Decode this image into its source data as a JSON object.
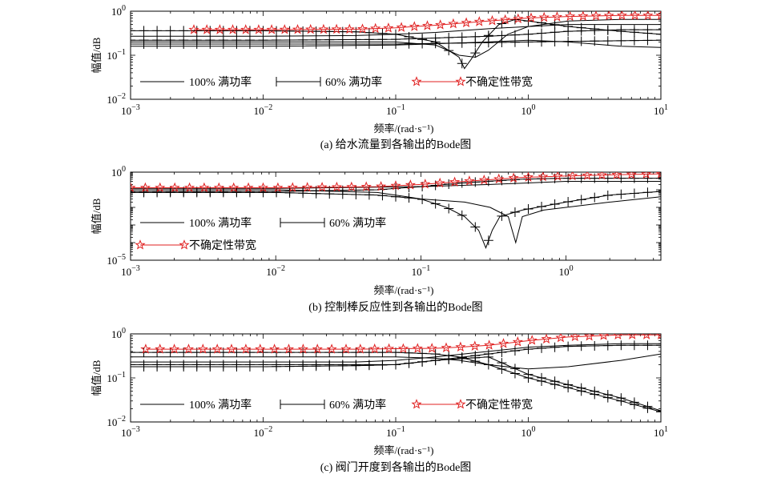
{
  "chart_data": [
    {
      "type": "line",
      "caption": "(a) 给水流量到各输出的Bode图",
      "xlabel": "频率/(rad·s⁻¹)",
      "ylabel": "幅值/dB",
      "xscale": "log",
      "yscale": "log",
      "xlim": [
        0.001,
        10
      ],
      "ylim": [
        0.01,
        1
      ],
      "x_ticks": [
        {
          "m": "10",
          "e": "−3"
        },
        {
          "m": "10",
          "e": "−2"
        },
        {
          "m": "10",
          "e": "−1"
        },
        {
          "m": "10",
          "e": "0"
        },
        {
          "m": "10",
          "e": "1"
        }
      ],
      "y_ticks": [
        {
          "m": "10",
          "e": "0"
        },
        {
          "m": "10",
          "e": "−1"
        },
        {
          "m": "10",
          "e": "−2"
        }
      ],
      "legend": {
        "placement": "bottom-left",
        "layout": "row",
        "items": [
          "100% 满功率",
          "60% 满功率",
          "不确定性带宽"
        ]
      },
      "series": [
        {
          "style": "plain",
          "x": [
            0.001,
            0.01,
            0.05,
            0.1,
            0.2,
            0.5,
            1,
            2,
            5,
            10
          ],
          "y": [
            0.27,
            0.27,
            0.28,
            0.3,
            0.33,
            0.4,
            0.45,
            0.5,
            0.5,
            0.5
          ]
        },
        {
          "style": "plain",
          "x": [
            0.001,
            0.01,
            0.05,
            0.1,
            0.2,
            0.3,
            0.4,
            0.5,
            0.7,
            1,
            2,
            5,
            10
          ],
          "y": [
            0.2,
            0.2,
            0.2,
            0.2,
            0.17,
            0.1,
            0.09,
            0.13,
            0.3,
            0.45,
            0.6,
            0.65,
            0.65
          ]
        },
        {
          "style": "plain",
          "x": [
            0.001,
            0.01,
            0.1,
            0.5,
            1,
            2,
            5,
            10
          ],
          "y": [
            0.16,
            0.16,
            0.17,
            0.2,
            0.22,
            0.2,
            0.16,
            0.15
          ]
        },
        {
          "style": "plus",
          "x": [
            0.001,
            0.01,
            0.05,
            0.1,
            0.2,
            0.3,
            0.33,
            0.37,
            0.45,
            0.6,
            0.8,
            1,
            2,
            5,
            10
          ],
          "y": [
            0.36,
            0.36,
            0.34,
            0.3,
            0.2,
            0.09,
            0.05,
            0.08,
            0.2,
            0.5,
            0.65,
            0.6,
            0.45,
            0.35,
            0.3
          ]
        },
        {
          "style": "plus",
          "x": [
            0.001,
            0.01,
            0.1,
            0.5,
            1,
            2,
            5,
            10
          ],
          "y": [
            0.22,
            0.22,
            0.23,
            0.27,
            0.3,
            0.35,
            0.38,
            0.38
          ]
        },
        {
          "style": "plus",
          "x": [
            0.001,
            0.01,
            0.1,
            1,
            10
          ],
          "y": [
            0.18,
            0.18,
            0.18,
            0.2,
            0.22
          ]
        },
        {
          "style": "band",
          "x": [
            0.003,
            0.01,
            0.05,
            0.1,
            0.2,
            0.5,
            1,
            2,
            5,
            10
          ],
          "y": [
            0.38,
            0.38,
            0.39,
            0.42,
            0.48,
            0.6,
            0.7,
            0.76,
            0.8,
            0.8
          ]
        }
      ]
    },
    {
      "type": "line",
      "caption": "(b) 控制棒反应性到各输出的Bode图",
      "xlabel": "频率/(rad·s⁻¹)",
      "ylabel": "幅值/dB",
      "xscale": "log",
      "yscale": "log",
      "xlim": [
        0.001,
        4.5
      ],
      "ylim": [
        1e-05,
        1
      ],
      "x_ticks": [
        {
          "v": 0.001,
          "m": "10",
          "e": "−3"
        },
        {
          "v": 0.01,
          "m": "10",
          "e": "−2"
        },
        {
          "v": 0.1,
          "m": "10",
          "e": "−1"
        },
        {
          "v": 1,
          "m": "10",
          "e": "0"
        }
      ],
      "y_ticks": [
        {
          "v": 1,
          "m": "10",
          "e": "0"
        },
        {
          "v": 1e-05,
          "m": "10",
          "e": "−5"
        }
      ],
      "legend": {
        "placement": "bottom-left",
        "layout": "stack",
        "items": [
          "100% 满功率",
          "60% 满功率",
          "不确定性带宽"
        ]
      },
      "series": [
        {
          "style": "plain",
          "x": [
            0.001,
            0.01,
            0.05,
            0.08,
            0.1,
            0.2,
            0.3,
            0.4,
            0.45,
            0.5,
            0.7,
            1,
            2,
            4.5
          ],
          "y": [
            0.1,
            0.1,
            0.07,
            0.04,
            0.03,
            0.02,
            0.01,
            0.003,
            0.0001,
            0.003,
            0.007,
            0.01,
            0.02,
            0.04
          ]
        },
        {
          "style": "plain",
          "x": [
            0.001,
            0.01,
            0.1,
            0.3,
            1,
            4.5
          ],
          "y": [
            0.12,
            0.12,
            0.15,
            0.2,
            0.3,
            0.3
          ]
        },
        {
          "style": "plus",
          "x": [
            0.001,
            0.01,
            0.05,
            0.1,
            0.15,
            0.2,
            0.25,
            0.28,
            0.31,
            0.35,
            0.5,
            1,
            2,
            4.5
          ],
          "y": [
            0.07,
            0.07,
            0.05,
            0.03,
            0.01,
            0.003,
            0.0005,
            5e-05,
            0.0005,
            0.003,
            0.007,
            0.02,
            0.05,
            0.08
          ]
        },
        {
          "style": "plus",
          "x": [
            0.001,
            0.01,
            0.05,
            0.1,
            0.2,
            0.5,
            1,
            2,
            4.5
          ],
          "y": [
            0.08,
            0.08,
            0.1,
            0.15,
            0.25,
            0.4,
            0.45,
            0.45,
            0.45
          ]
        },
        {
          "style": "band",
          "x": [
            0.001,
            0.01,
            0.05,
            0.1,
            0.2,
            0.5,
            1,
            2,
            4.5
          ],
          "y": [
            0.13,
            0.13,
            0.15,
            0.2,
            0.3,
            0.5,
            0.6,
            0.7,
            0.8
          ]
        }
      ]
    },
    {
      "type": "line",
      "caption": "(c) 阀门开度到各输出的Bode图",
      "xlabel": "频率/(rad·s⁻¹)",
      "ylabel": "幅值/dB",
      "xscale": "log",
      "yscale": "log",
      "xlim": [
        0.001,
        10
      ],
      "ylim": [
        0.01,
        1
      ],
      "x_ticks": [
        {
          "m": "10",
          "e": "−3"
        },
        {
          "m": "10",
          "e": "−2"
        },
        {
          "m": "10",
          "e": "−1"
        },
        {
          "m": "10",
          "e": "0"
        },
        {
          "m": "10",
          "e": "1"
        }
      ],
      "y_ticks": [
        {
          "m": "10",
          "e": "0"
        },
        {
          "m": "10",
          "e": "−1"
        },
        {
          "m": "10",
          "e": "−2"
        }
      ],
      "legend": {
        "placement": "bottom-left",
        "layout": "row",
        "items": [
          "100% 满功率",
          "60% 满功率",
          "不确定性带宽"
        ]
      },
      "series": [
        {
          "style": "plain",
          "x": [
            0.001,
            0.05,
            0.1,
            0.2,
            0.5,
            1,
            2,
            5,
            10
          ],
          "y": [
            0.23,
            0.23,
            0.25,
            0.3,
            0.4,
            0.5,
            0.55,
            0.6,
            0.6
          ]
        },
        {
          "style": "plain",
          "x": [
            0.001,
            0.05,
            0.1,
            0.2,
            0.3,
            0.5,
            0.8,
            1,
            2,
            5,
            10
          ],
          "y": [
            0.3,
            0.3,
            0.3,
            0.28,
            0.25,
            0.2,
            0.17,
            0.16,
            0.18,
            0.25,
            0.35
          ]
        },
        {
          "style": "plus",
          "x": [
            0.001,
            0.01,
            0.05,
            0.1,
            0.2,
            0.3,
            0.5,
            1,
            2,
            5,
            10
          ],
          "y": [
            0.38,
            0.38,
            0.38,
            0.38,
            0.35,
            0.3,
            0.2,
            0.1,
            0.06,
            0.03,
            0.017
          ]
        },
        {
          "style": "plus",
          "x": [
            0.001,
            0.01,
            0.05,
            0.1,
            0.2,
            0.5,
            1,
            2,
            5,
            10
          ],
          "y": [
            0.18,
            0.18,
            0.19,
            0.2,
            0.25,
            0.3,
            0.12,
            0.07,
            0.035,
            0.018
          ]
        },
        {
          "style": "plus",
          "x": [
            0.001,
            0.01,
            0.1,
            0.2,
            0.5,
            1,
            2,
            5,
            10
          ],
          "y": [
            0.2,
            0.2,
            0.2,
            0.25,
            0.35,
            0.45,
            0.52,
            0.55,
            0.55
          ]
        },
        {
          "style": "band",
          "x": [
            0.0013,
            0.01,
            0.05,
            0.1,
            0.2,
            0.3,
            0.5,
            1,
            2,
            5,
            10
          ],
          "y": [
            0.45,
            0.45,
            0.45,
            0.46,
            0.47,
            0.5,
            0.55,
            0.7,
            0.85,
            0.95,
            0.95
          ]
        }
      ]
    }
  ]
}
